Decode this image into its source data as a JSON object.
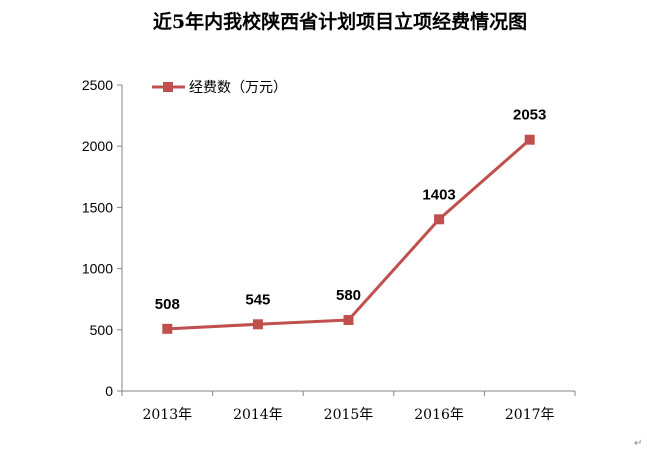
{
  "chart_data": {
    "type": "line",
    "title": "近5年内我校陕西省计划项目立项经费情况图",
    "categories": [
      "2013年",
      "2014年",
      "2015年",
      "2016年",
      "2017年"
    ],
    "series": [
      {
        "name": "经费数（万元）",
        "values": [
          508,
          545,
          580,
          1403,
          2053
        ],
        "color": "#C0504D"
      }
    ],
    "xlabel": "",
    "ylabel": "",
    "ylim": [
      0,
      2500
    ],
    "yticks": [
      0,
      500,
      1000,
      1500,
      2000,
      2500
    ],
    "grid": false,
    "legend": "top-left",
    "data_labels": true
  },
  "paragraph_mark": "↵"
}
